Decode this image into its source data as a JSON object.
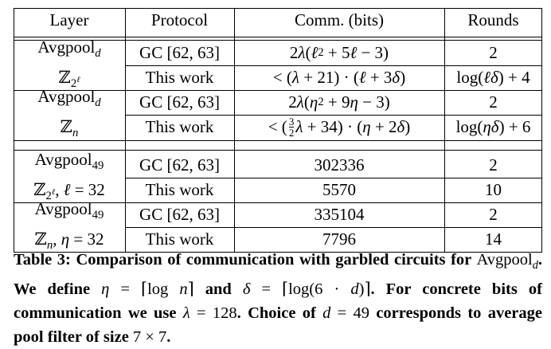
{
  "table": {
    "headers": {
      "layer": "Layer",
      "protocol": "Protocol",
      "comm": "Comm. (bits)",
      "rounds": "Rounds"
    },
    "groups": [
      {
        "layer_line1": "Avgpool_d",
        "layer_line2": "ℤ_{2^ℓ}",
        "rows": [
          {
            "protocol": "GC [62, 63]",
            "comm": "2λ(ℓ² + 5ℓ − 3)",
            "rounds": "2"
          },
          {
            "protocol": "This work",
            "comm": "< (λ + 21) · (ℓ + 3δ)",
            "rounds": "log(ℓδ) + 4"
          }
        ]
      },
      {
        "layer_line1": "Avgpool_d",
        "layer_line2": "ℤ_n",
        "rows": [
          {
            "protocol": "GC [62, 63]",
            "comm": "2λ(η² + 9η − 3)",
            "rounds": "2"
          },
          {
            "protocol": "This work",
            "comm": "< (3/2 λ + 34) · (η + 2δ)",
            "rounds": "log(ηδ) + 6"
          }
        ]
      },
      {
        "layer_line1": "Avgpool_49",
        "layer_line2": "ℤ_{2^ℓ}, ℓ = 32",
        "rows": [
          {
            "protocol": "GC [62, 63]",
            "comm": "302336",
            "rounds": "2"
          },
          {
            "protocol": "This work",
            "comm": "5570",
            "rounds": "10"
          }
        ]
      },
      {
        "layer_line1": "Avgpool_49",
        "layer_line2": "ℤ_n, η = 32",
        "rows": [
          {
            "protocol": "GC [62, 63]",
            "comm": "335104",
            "rounds": "2"
          },
          {
            "protocol": "This work",
            "comm": "7796",
            "rounds": "14"
          }
        ]
      }
    ]
  },
  "caption": {
    "label": "Table 3:",
    "text": "Comparison of communication with garbled circuits for Avgpool_d. We define η = ⌈log n⌉ and δ = ⌈log(6 · d)⌉. For concrete bits of communication we use λ = 128. Choice of d = 49 corresponds to average pool filter of size 7 × 7."
  }
}
